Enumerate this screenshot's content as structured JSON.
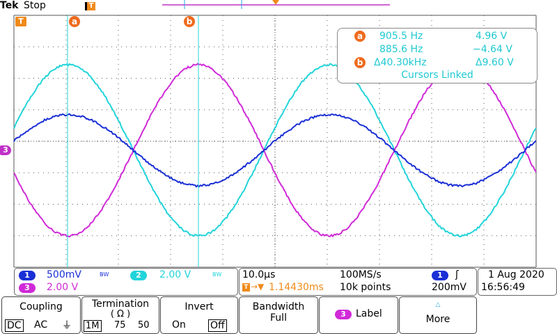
{
  "header": {
    "brand": "Tek",
    "state": "Stop",
    "trigger_marker": "T"
  },
  "cursor_markers": {
    "a": "a",
    "b": "b"
  },
  "channel_marker": "3",
  "cursor_readout": {
    "a_freq": "905.5 Hz",
    "a_volt": "4.96 V",
    "b_freq": "885.6 Hz",
    "b_volt": "−4.64 V",
    "delta_freq": "Δ40.30kHz",
    "delta_volt": "Δ9.60 V",
    "linked": "Cursors Linked"
  },
  "channels": {
    "ch1": {
      "num": "1",
      "scale": "500mV",
      "bw": "B̵W",
      "color": "#1a2fd6"
    },
    "ch2": {
      "num": "2",
      "scale": "2.00 V",
      "bw": "B̵W",
      "color": "#22d4da"
    },
    "ch3": {
      "num": "3",
      "scale": "2.00 V",
      "color": "#d02ad8"
    }
  },
  "timebase": {
    "scale": "10.0µs",
    "rate": "100MS/s",
    "position": "1.14430ms",
    "record": "10k points",
    "trigger_level": "200mV",
    "trigger_ch": "1",
    "trigger_slope": "ʃ"
  },
  "datetime": {
    "date": "1 Aug 2020",
    "time": "16:56:49"
  },
  "menu": {
    "coupling": {
      "title": "Coupling",
      "dc": "DC",
      "ac": "AC",
      "gnd": "⏚"
    },
    "termination": {
      "title": "Termination",
      "unit": "( Ω )",
      "o1": "1M",
      "o2": "75",
      "o3": "50"
    },
    "invert": {
      "title": "Invert",
      "on": "On",
      "off": "Off"
    },
    "bandwidth": {
      "title": "Bandwidth",
      "value": "Full"
    },
    "label": {
      "num": "3",
      "title": "Label"
    },
    "more": {
      "title": "More"
    }
  }
}
